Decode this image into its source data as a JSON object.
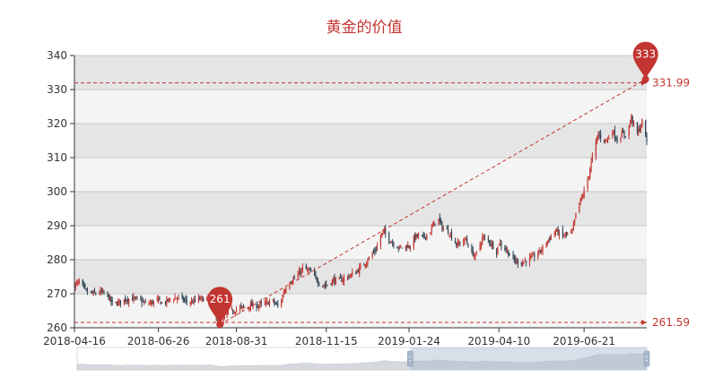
{
  "chart_data": {
    "type": "candlestick",
    "title": "黄金的价值",
    "ylim": [
      260,
      340
    ],
    "y_ticks": [
      "260",
      "270",
      "280",
      "290",
      "300",
      "310",
      "320",
      "330",
      "340"
    ],
    "x_ticks": [
      "2018-04-16",
      "2018-06-26",
      "2018-08-31",
      "2018-11-15",
      "2019-01-24",
      "2019-04-10",
      "2019-06-21"
    ],
    "x_range": [
      "2018-04-16",
      "2019-08-13"
    ],
    "grid": "horizontal, alternating bands",
    "up_color": "#c23531",
    "down_color": "#314656",
    "series": [
      {
        "name": "",
        "close_path": [
          [
            "2018-04-16",
            272.5
          ],
          [
            "2018-04-20",
            273.5
          ],
          [
            "2018-04-26",
            270.5
          ],
          [
            "2018-05-02",
            270
          ],
          [
            "2018-05-08",
            270.5
          ],
          [
            "2018-05-14",
            269.5
          ],
          [
            "2018-05-18",
            267
          ],
          [
            "2018-05-24",
            267.5
          ],
          [
            "2018-05-30",
            268.5
          ],
          [
            "2018-06-05",
            268.5
          ],
          [
            "2018-06-11",
            268
          ],
          [
            "2018-06-15",
            267
          ],
          [
            "2018-06-21",
            267.5
          ],
          [
            "2018-06-26",
            268
          ],
          [
            "2018-06-30",
            267
          ],
          [
            "2018-07-06",
            268.5
          ],
          [
            "2018-07-12",
            269
          ],
          [
            "2018-07-18",
            268
          ],
          [
            "2018-07-24",
            267.5
          ],
          [
            "2018-07-30",
            268.5
          ],
          [
            "2018-08-03",
            268.5
          ],
          [
            "2018-08-08",
            269
          ],
          [
            "2018-08-13",
            264
          ],
          [
            "2018-08-17",
            261.5
          ],
          [
            "2018-08-22",
            264
          ],
          [
            "2018-08-28",
            265
          ],
          [
            "2018-08-31",
            265.5
          ],
          [
            "2018-09-06",
            266
          ],
          [
            "2018-09-12",
            266.5
          ],
          [
            "2018-09-18",
            266.5
          ],
          [
            "2018-09-24",
            267
          ],
          [
            "2018-09-30",
            268
          ],
          [
            "2018-10-06",
            266
          ],
          [
            "2018-10-10",
            270.5
          ],
          [
            "2018-10-14",
            273.5
          ],
          [
            "2018-10-20",
            274.5
          ],
          [
            "2018-10-26",
            277.5
          ],
          [
            "2018-11-01",
            276.5
          ],
          [
            "2018-11-05",
            275
          ],
          [
            "2018-11-11",
            272.5
          ],
          [
            "2018-11-15",
            272.5
          ],
          [
            "2018-11-21",
            274
          ],
          [
            "2018-11-27",
            274
          ],
          [
            "2018-12-03",
            275
          ],
          [
            "2018-12-09",
            276
          ],
          [
            "2018-12-15",
            278
          ],
          [
            "2018-12-21",
            280.5
          ],
          [
            "2018-12-27",
            283
          ],
          [
            "2019-01-02",
            288.5
          ],
          [
            "2019-01-06",
            286.5
          ],
          [
            "2019-01-10",
            285
          ],
          [
            "2019-01-16",
            283.5
          ],
          [
            "2019-01-22",
            284
          ],
          [
            "2019-01-24",
            284
          ],
          [
            "2019-01-30",
            287
          ],
          [
            "2019-02-05",
            286.5
          ],
          [
            "2019-02-11",
            288.5
          ],
          [
            "2019-02-17",
            292.5
          ],
          [
            "2019-02-21",
            289.5
          ],
          [
            "2019-02-27",
            288
          ],
          [
            "2019-03-05",
            284.5
          ],
          [
            "2019-03-09",
            285
          ],
          [
            "2019-03-13",
            286
          ],
          [
            "2019-03-17",
            282.5
          ],
          [
            "2019-03-21",
            281
          ],
          [
            "2019-03-27",
            286.5
          ],
          [
            "2019-04-02",
            285.5
          ],
          [
            "2019-04-08",
            282.5
          ],
          [
            "2019-04-10",
            285
          ],
          [
            "2019-04-16",
            283
          ],
          [
            "2019-04-22",
            280
          ],
          [
            "2019-04-28",
            279
          ],
          [
            "2019-05-04",
            280
          ],
          [
            "2019-05-10",
            281
          ],
          [
            "2019-05-16",
            283
          ],
          [
            "2019-05-22",
            286
          ],
          [
            "2019-05-28",
            288.5
          ],
          [
            "2019-06-03",
            287
          ],
          [
            "2019-06-07",
            287.5
          ],
          [
            "2019-06-11",
            288
          ],
          [
            "2019-06-15",
            295
          ],
          [
            "2019-06-21",
            300
          ],
          [
            "2019-06-25",
            305
          ],
          [
            "2019-06-29",
            312
          ],
          [
            "2019-07-03",
            317
          ],
          [
            "2019-07-07",
            315
          ],
          [
            "2019-07-11",
            315.5
          ],
          [
            "2019-07-15",
            318
          ],
          [
            "2019-07-19",
            315
          ],
          [
            "2019-07-23",
            317
          ],
          [
            "2019-07-27",
            316.5
          ],
          [
            "2019-07-31",
            322
          ],
          [
            "2019-08-04",
            317
          ],
          [
            "2019-08-08",
            319
          ],
          [
            "2019-08-10",
            322
          ],
          [
            "2019-08-13",
            314
          ]
        ]
      }
    ],
    "mark_points": [
      {
        "label": "333",
        "date": "2019-08-12",
        "value": 333,
        "type": "max"
      },
      {
        "label": "261",
        "date": "2018-08-17",
        "value": 261,
        "type": "min"
      }
    ],
    "mark_lines": [
      {
        "label": "331.99",
        "value": 331.99
      },
      {
        "label": "261.59",
        "value": 261.59
      }
    ],
    "trend_line": [
      [
        "2018-08-17",
        261
      ],
      [
        "2019-08-12",
        333
      ]
    ],
    "data_zoom": {
      "start_date": "2019-01-24",
      "end_date": "2019-08-13"
    }
  }
}
